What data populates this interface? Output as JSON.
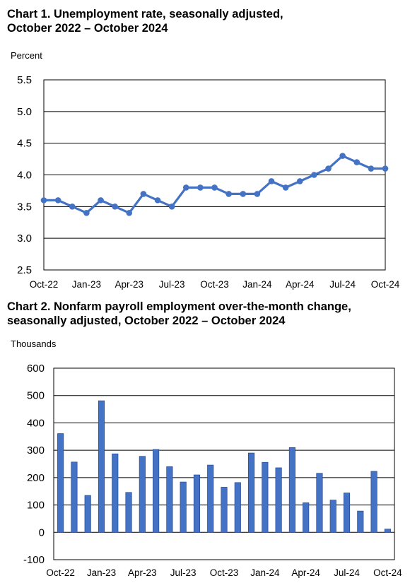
{
  "chart_data": [
    {
      "type": "line",
      "title": "Chart 1. Unemployment rate, seasonally adjusted, October 2022 – October 2024",
      "title_lines": [
        "Chart 1. Unemployment rate, seasonally adjusted,",
        "October 2022 – October 2024"
      ],
      "ylabel": "Percent",
      "ylim": [
        2.5,
        5.5
      ],
      "yticks": [
        "2.5",
        "3.0",
        "3.5",
        "4.0",
        "4.5",
        "5.0",
        "5.5"
      ],
      "ytick_values": [
        2.5,
        3.0,
        3.5,
        4.0,
        4.5,
        5.0,
        5.5
      ],
      "xtick_labels": [
        "Oct-22",
        "Jan-23",
        "Apr-23",
        "Jul-23",
        "Oct-23",
        "Jan-24",
        "Apr-24",
        "Jul-24",
        "Oct-24"
      ],
      "grid": true,
      "legend": "none",
      "color": "#4472C4",
      "x": [
        "Oct-22",
        "Nov-22",
        "Dec-22",
        "Jan-23",
        "Feb-23",
        "Mar-23",
        "Apr-23",
        "May-23",
        "Jun-23",
        "Jul-23",
        "Aug-23",
        "Sep-23",
        "Oct-23",
        "Nov-23",
        "Dec-23",
        "Jan-24",
        "Feb-24",
        "Mar-24",
        "Apr-24",
        "May-24",
        "Jun-24",
        "Jul-24",
        "Aug-24",
        "Sep-24",
        "Oct-24"
      ],
      "values": [
        3.6,
        3.6,
        3.5,
        3.4,
        3.6,
        3.5,
        3.4,
        3.7,
        3.6,
        3.5,
        3.8,
        3.8,
        3.8,
        3.7,
        3.7,
        3.7,
        3.9,
        3.8,
        3.9,
        4.0,
        4.1,
        4.3,
        4.2,
        4.1,
        4.1
      ]
    },
    {
      "type": "bar",
      "title": "Chart 2. Nonfarm payroll employment over-the-month change, seasonally adjusted, October 2022 – October 2024",
      "title_lines": [
        "Chart 2. Nonfarm payroll employment over-the-month change,",
        "seasonally adjusted, October 2022 – October 2024"
      ],
      "ylabel": "Thousands",
      "ylim": [
        -100,
        600
      ],
      "yticks": [
        "-100",
        "0",
        "100",
        "200",
        "300",
        "400",
        "500",
        "600"
      ],
      "ytick_values": [
        -100,
        0,
        100,
        200,
        300,
        400,
        500,
        600
      ],
      "xtick_labels": [
        "Oct-22",
        "Jan-23",
        "Apr-23",
        "Jul-23",
        "Oct-23",
        "Jan-24",
        "Apr-24",
        "Jul-24",
        "Oct-24"
      ],
      "grid": true,
      "legend": "none",
      "color": "#4472C4",
      "categories": [
        "Oct-22",
        "Nov-22",
        "Dec-22",
        "Jan-23",
        "Feb-23",
        "Mar-23",
        "Apr-23",
        "May-23",
        "Jun-23",
        "Jul-23",
        "Aug-23",
        "Sep-23",
        "Oct-23",
        "Nov-23",
        "Dec-23",
        "Jan-24",
        "Feb-24",
        "Mar-24",
        "Apr-24",
        "May-24",
        "Jun-24",
        "Jul-24",
        "Aug-24",
        "Sep-24",
        "Oct-24"
      ],
      "values": [
        361,
        257,
        135,
        481,
        287,
        146,
        278,
        303,
        240,
        184,
        210,
        246,
        165,
        182,
        290,
        256,
        236,
        310,
        108,
        216,
        118,
        144,
        78,
        223,
        12
      ]
    }
  ]
}
